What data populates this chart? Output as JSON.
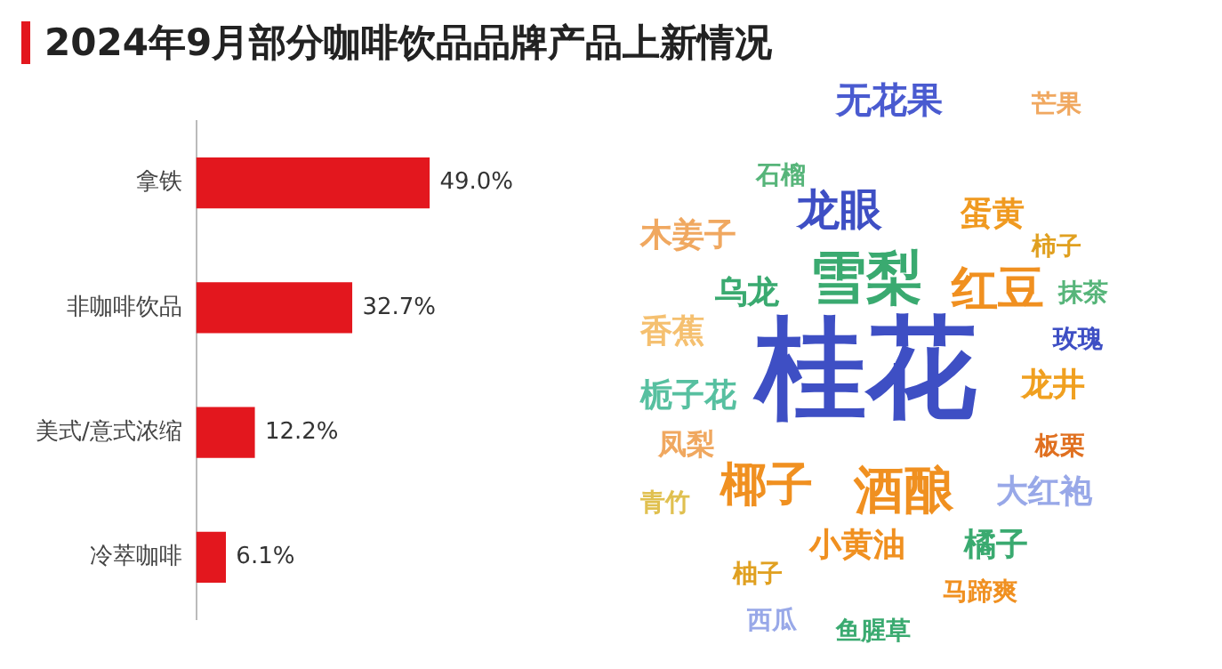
{
  "chart_data": [
    {
      "type": "bar",
      "title": "2024年9月部分咖啡饮品品牌产品上新情况",
      "orientation": "horizontal",
      "categories": [
        "拿铁",
        "非咖啡饮品",
        "美式/意式浓缩",
        "冷萃咖啡"
      ],
      "values": [
        49.0,
        32.7,
        12.2,
        6.1
      ],
      "value_labels": [
        "49.0%",
        "32.7%",
        "12.2%",
        "6.1%"
      ],
      "color": "#e3171e",
      "legend": false
    },
    {
      "type": "other",
      "annotations": [
        "无花果",
        "芒果",
        "石榴",
        "龙眼",
        "蛋黄",
        "木姜子",
        "柿子",
        "雪梨",
        "乌龙",
        "红豆",
        "抹茶",
        "香蕉",
        "玫瑰",
        "桂花",
        "栀子花",
        "龙井",
        "凤梨",
        "板栗",
        "青竹",
        "椰子",
        "酒酿",
        "大红袍",
        "小黄油",
        "橘子",
        "柚子",
        "马蹄爽",
        "西瓜",
        "鱼腥草"
      ]
    }
  ]
}
